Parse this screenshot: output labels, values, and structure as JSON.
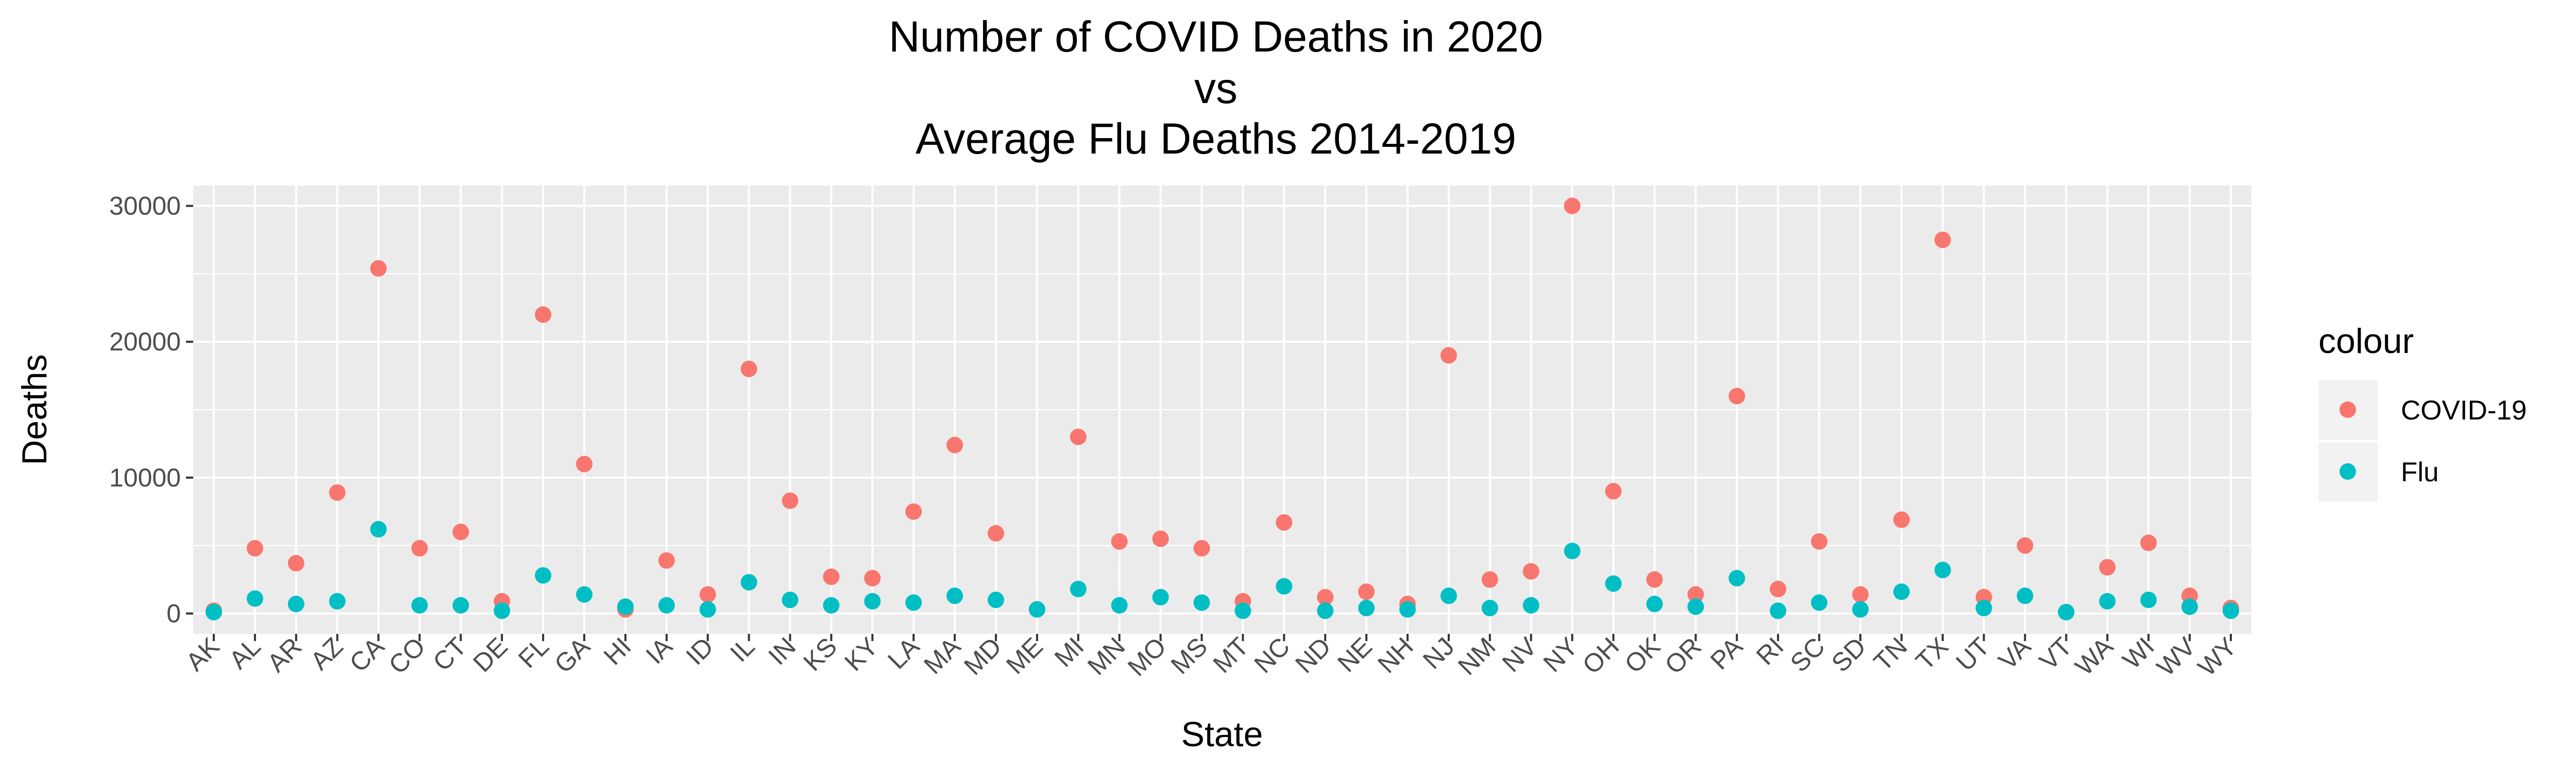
{
  "chart_data": {
    "type": "scatter",
    "title": [
      "Number of COVID Deaths in 2020",
      "vs",
      "Average Flu Deaths 2014-2019"
    ],
    "xlabel": "State",
    "ylabel": "Deaths",
    "ylim": [
      -1500,
      31500
    ],
    "yticks": [
      0,
      10000,
      20000,
      30000
    ],
    "ytick_labels": [
      "0",
      "10000",
      "20000",
      "30000"
    ],
    "grid": true,
    "legend": {
      "title": "colour",
      "position": "right"
    },
    "categories": [
      "AK",
      "AL",
      "AR",
      "AZ",
      "CA",
      "CO",
      "CT",
      "DE",
      "FL",
      "GA",
      "HI",
      "IA",
      "ID",
      "IL",
      "IN",
      "KS",
      "KY",
      "LA",
      "MA",
      "MD",
      "ME",
      "MI",
      "MN",
      "MO",
      "MS",
      "MT",
      "NC",
      "ND",
      "NE",
      "NH",
      "NJ",
      "NM",
      "NV",
      "NY",
      "OH",
      "OK",
      "OR",
      "PA",
      "RI",
      "SC",
      "SD",
      "TN",
      "TX",
      "UT",
      "VA",
      "VT",
      "WA",
      "WI",
      "WV",
      "WY"
    ],
    "series": [
      {
        "name": "COVID-19",
        "color": "#F8766D",
        "values": [
          200,
          4800,
          3700,
          8900,
          25400,
          4800,
          6000,
          900,
          22000,
          11000,
          300,
          3900,
          1400,
          18000,
          8300,
          2700,
          2600,
          7500,
          12400,
          5900,
          300,
          13000,
          5300,
          5500,
          4800,
          900,
          6700,
          1200,
          1600,
          700,
          19000,
          2500,
          3100,
          30000,
          9000,
          2500,
          1400,
          16000,
          1800,
          5300,
          1400,
          6900,
          27500,
          1200,
          5000,
          100,
          3400,
          5200,
          1300,
          400
        ]
      },
      {
        "name": "Flu",
        "color": "#00BFC4",
        "values": [
          100,
          1100,
          700,
          900,
          6200,
          600,
          600,
          200,
          2800,
          1400,
          500,
          600,
          300,
          2300,
          1000,
          600,
          900,
          800,
          1300,
          1000,
          300,
          1800,
          600,
          1200,
          800,
          200,
          2000,
          200,
          400,
          300,
          1300,
          400,
          600,
          4600,
          2200,
          700,
          500,
          2600,
          200,
          800,
          300,
          1600,
          3200,
          400,
          1300,
          100,
          900,
          1000,
          500,
          200
        ]
      }
    ]
  }
}
